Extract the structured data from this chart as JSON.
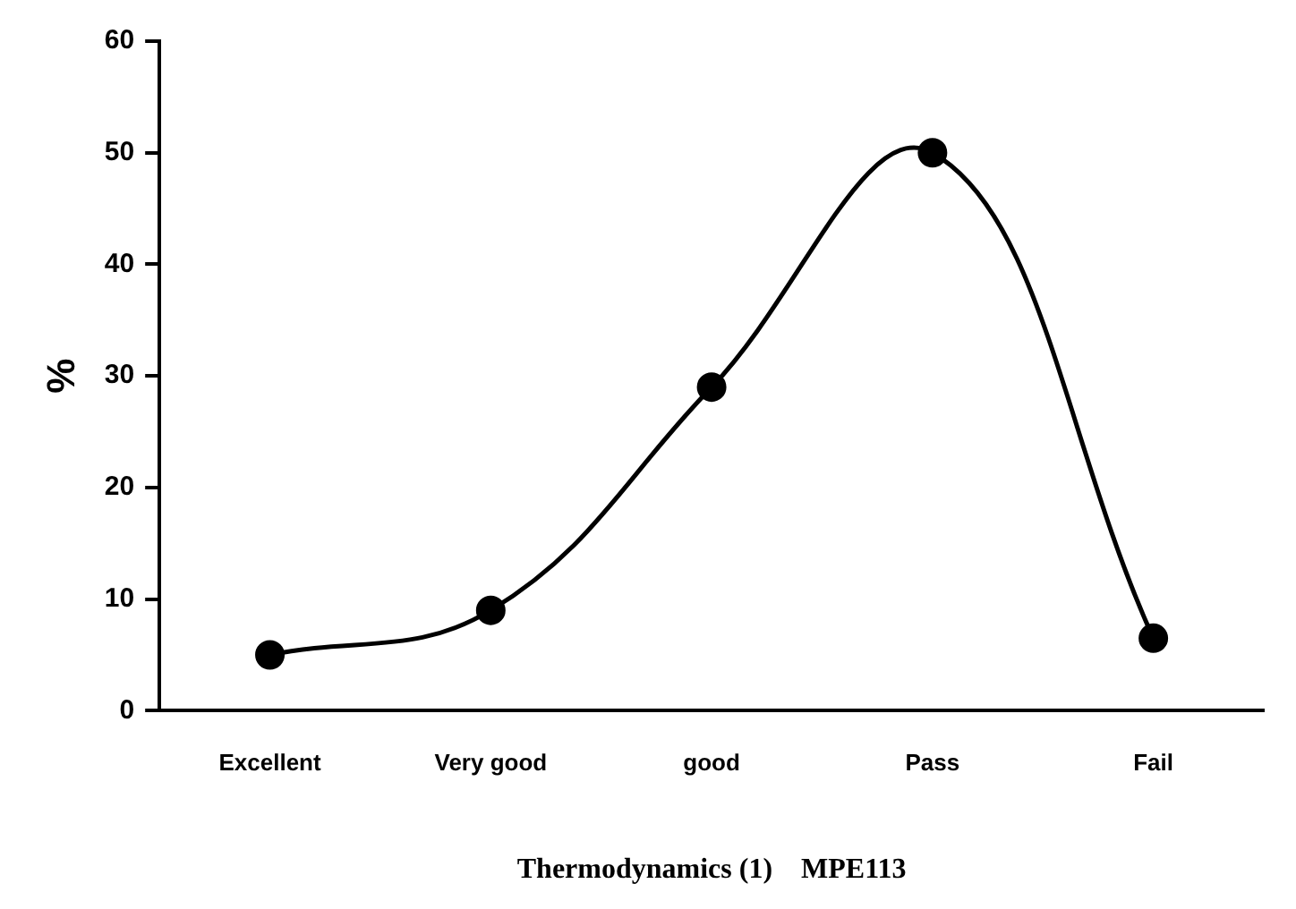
{
  "chart_data": {
    "type": "line",
    "xlabel": "Thermodynamics (1)    MPE113",
    "ylabel": "%",
    "categories": [
      "Excellent",
      "Very good",
      "good",
      "Pass",
      "Fail"
    ],
    "series": [
      {
        "color": "#000000",
        "values": [
          5,
          9,
          29,
          50,
          6.5
        ]
      }
    ],
    "ylim": [
      0,
      60
    ],
    "yticks": [
      0,
      10,
      20,
      30,
      40,
      50,
      60
    ],
    "grid": false,
    "legend": false,
    "marker": "circle",
    "line_style": "solid"
  }
}
